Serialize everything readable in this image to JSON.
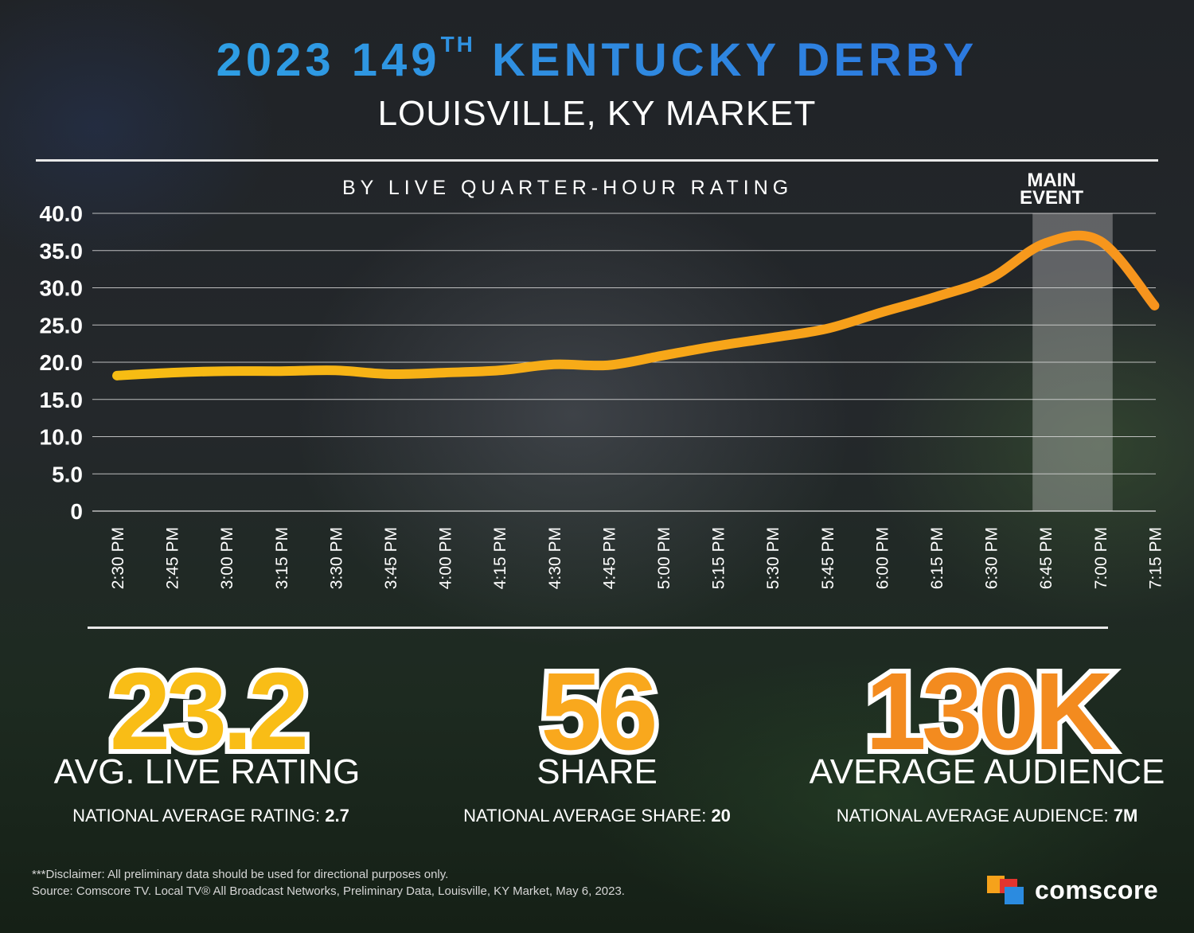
{
  "header": {
    "title_main": "2023 149",
    "title_sup": "TH",
    "title_rest": " KENTUCKY DERBY",
    "subtitle": "LOUISVILLE, KY MARKET"
  },
  "chart_data": {
    "type": "line",
    "title": "BY LIVE QUARTER-HOUR RATING",
    "categories": [
      "2:30 PM",
      "2:45 PM",
      "3:00 PM",
      "3:15 PM",
      "3:30 PM",
      "3:45 PM",
      "4:00 PM",
      "4:15 PM",
      "4:30 PM",
      "4:45 PM",
      "5:00 PM",
      "5:15 PM",
      "5:30 PM",
      "5:45 PM",
      "6:00 PM",
      "6:15 PM",
      "6:30 PM",
      "6:45 PM",
      "7:00 PM",
      "7:15 PM"
    ],
    "series": [
      {
        "values": [
          18.2,
          18.6,
          18.8,
          18.8,
          18.9,
          18.4,
          18.6,
          18.9,
          19.7,
          19.6,
          20.9,
          22.2,
          23.3,
          24.5,
          26.7,
          28.8,
          31.3,
          36.0,
          36.3,
          27.6
        ]
      }
    ],
    "yticks": [
      "40.0",
      "35.0",
      "30.0",
      "25.0",
      "20.0",
      "15.0",
      "10.0",
      "5.0",
      "0"
    ],
    "ylim": [
      0,
      40
    ],
    "grid": true,
    "highlight": {
      "label_line1": "MAIN",
      "label_line2": "EVENT",
      "from": "6:45 PM",
      "to": "7:00 PM"
    },
    "line_colors": [
      "#f7bd13",
      "#f7941d"
    ]
  },
  "stats": [
    {
      "value": "23.2",
      "label": "AVG. LIVE RATING",
      "national_label": "NATIONAL AVERAGE RATING:",
      "national_value": "2.7",
      "color": "#f9bd16"
    },
    {
      "value": "56",
      "label": "SHARE",
      "national_label": "NATIONAL AVERAGE SHARE:",
      "national_value": "20",
      "color": "#f9a81d"
    },
    {
      "value": "130K",
      "label": "AVERAGE AUDIENCE",
      "national_label": "NATIONAL AVERAGE AUDIENCE:",
      "national_value": "7M",
      "color": "#f38b1f"
    }
  ],
  "footer": {
    "disclaimer": "***Disclaimer: All preliminary data should be used for directional purposes only.",
    "source": "Source: Comscore TV. Local TV® All Broadcast Networks, Preliminary Data, Louisville, KY Market, May 6, 2023.",
    "logo_text": "comscore"
  }
}
